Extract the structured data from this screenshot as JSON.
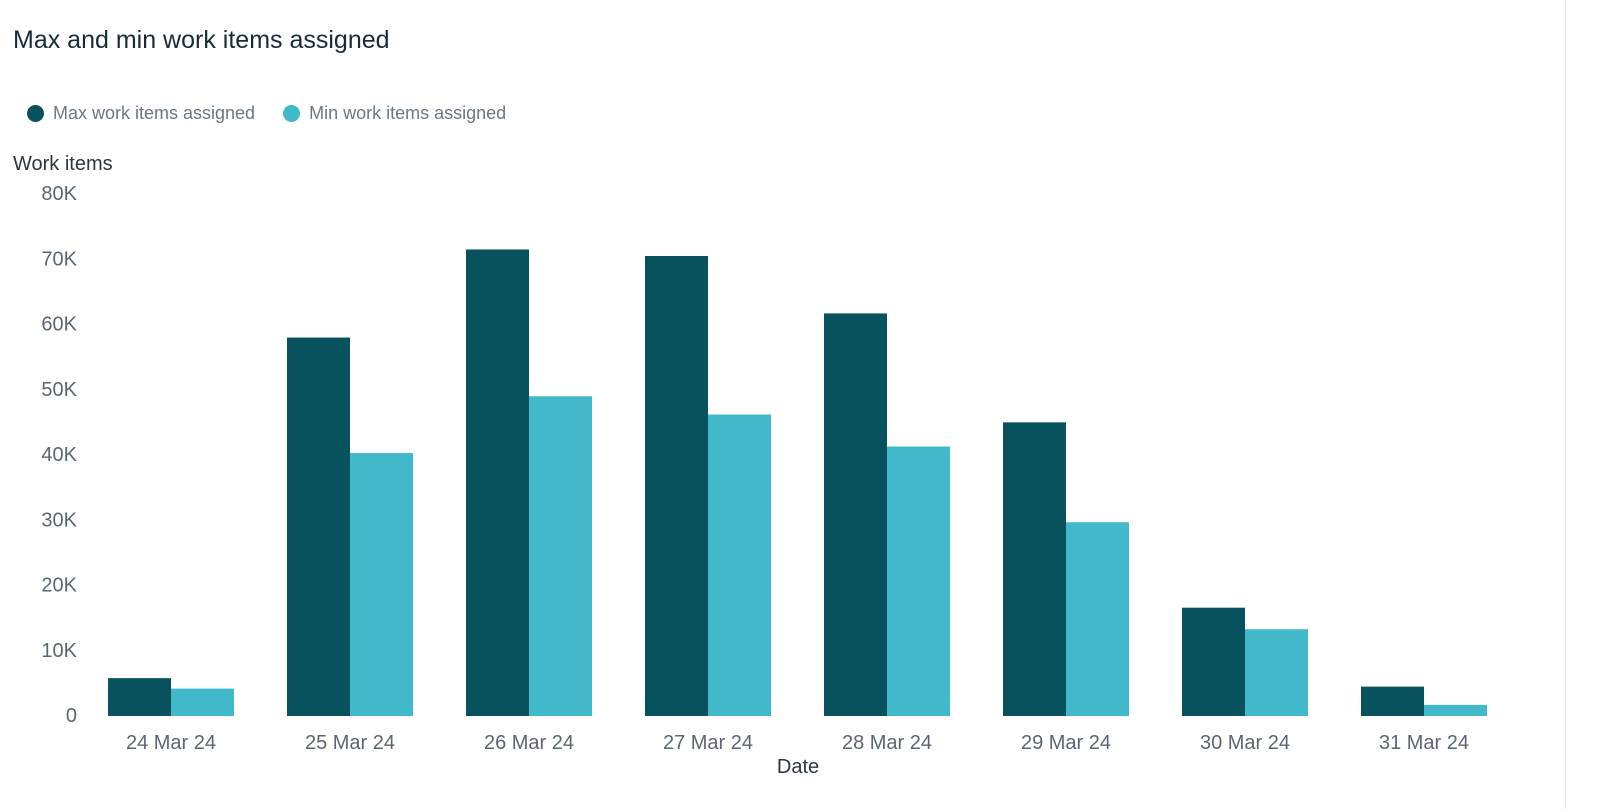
{
  "chart_data": {
    "type": "bar",
    "title": "Max and min work items assigned",
    "xlabel": "Date",
    "ylabel": "Work items",
    "ylim": [
      0,
      80000
    ],
    "yticks": [
      {
        "value": 0,
        "label": "0"
      },
      {
        "value": 10000,
        "label": "10K"
      },
      {
        "value": 20000,
        "label": "20K"
      },
      {
        "value": 30000,
        "label": "30K"
      },
      {
        "value": 40000,
        "label": "40K"
      },
      {
        "value": 50000,
        "label": "50K"
      },
      {
        "value": 60000,
        "label": "60K"
      },
      {
        "value": 70000,
        "label": "70K"
      },
      {
        "value": 80000,
        "label": "80K"
      }
    ],
    "grid": false,
    "legend_position": "top-left",
    "categories": [
      "24 Mar 24",
      "25 Mar 24",
      "26 Mar 24",
      "27 Mar 24",
      "28 Mar 24",
      "29 Mar 24",
      "30 Mar 24",
      "31 Mar 24"
    ],
    "series": [
      {
        "name": "Max work items assigned",
        "color": "#07525d",
        "values": [
          5800,
          58000,
          71500,
          70500,
          61700,
          45000,
          16600,
          4500
        ]
      },
      {
        "name": "Min work items assigned",
        "color": "#42b9cb",
        "values": [
          4200,
          40300,
          49000,
          46200,
          41300,
          29700,
          13300,
          1700
        ]
      }
    ]
  }
}
